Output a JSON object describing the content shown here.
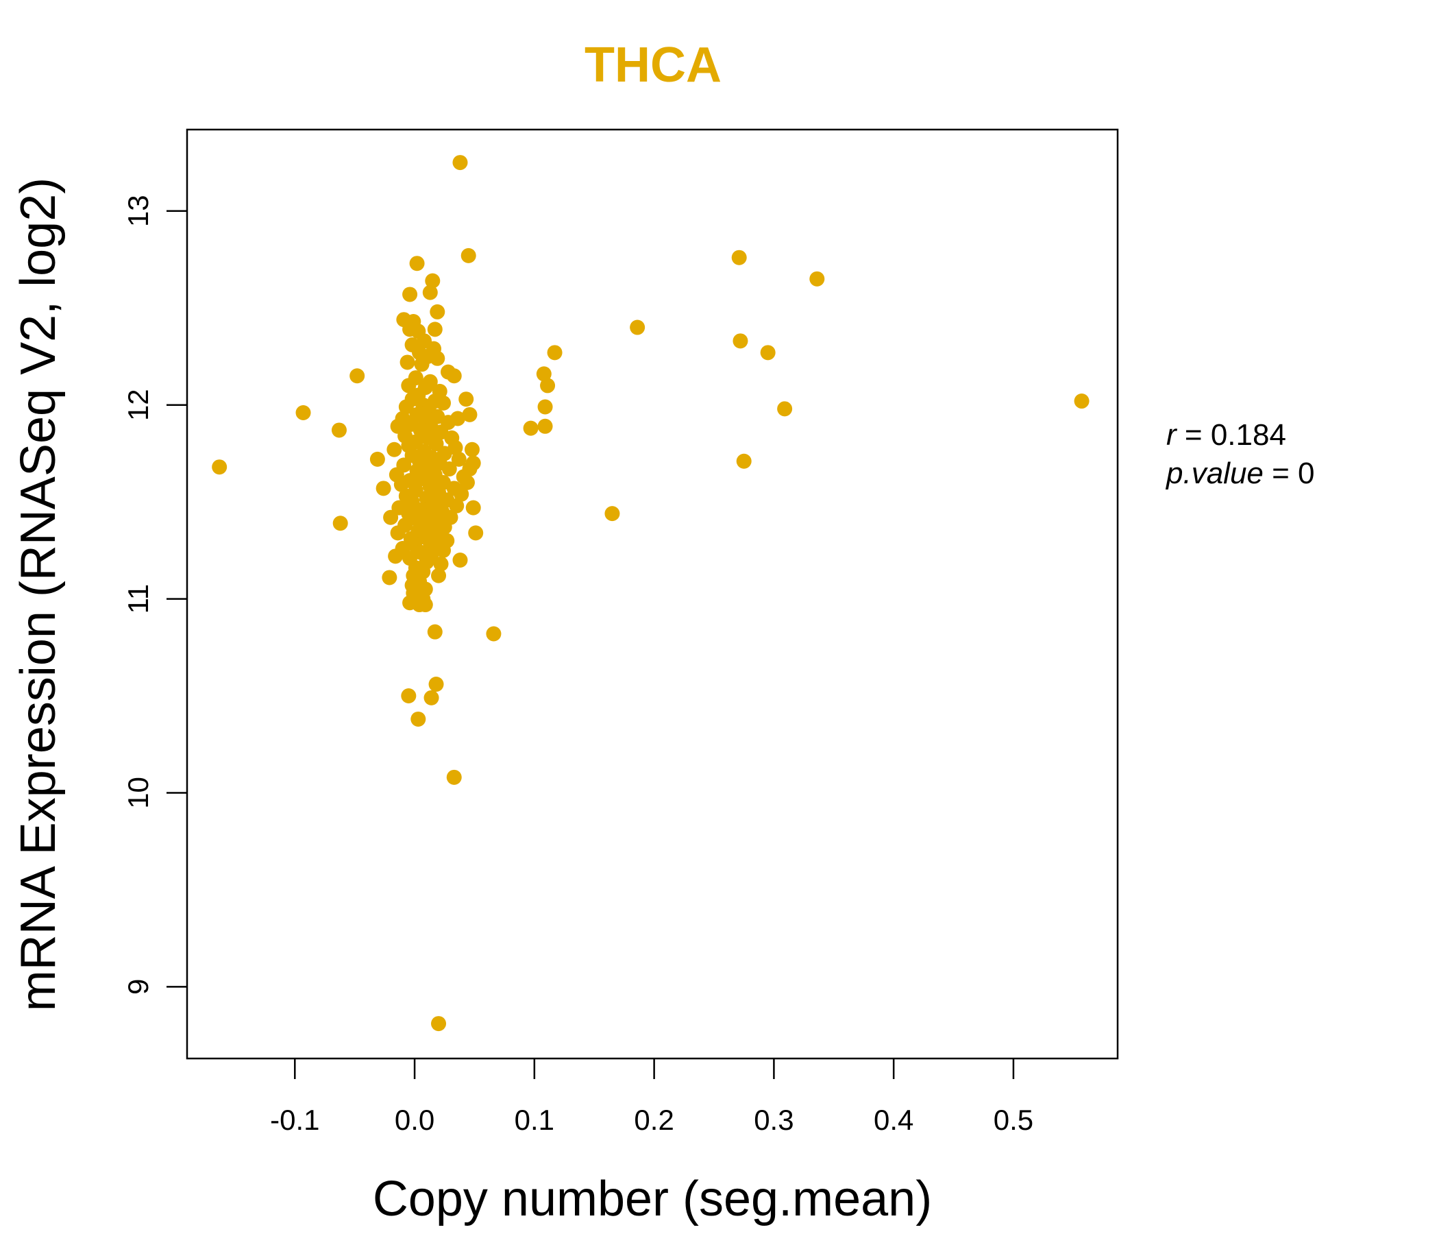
{
  "colors": {
    "point": "#E3AA00",
    "title": "#E3AA00",
    "axis": "#000000"
  },
  "chart_data": {
    "type": "scatter",
    "title": "THCA",
    "xlabel": "Copy number (seg.mean)",
    "ylabel": "mRNA Expression (RNASeq V2, log2)",
    "xlim": [
      -0.19,
      0.587
    ],
    "ylim": [
      8.63,
      13.42
    ],
    "x_ticks": [
      -0.1,
      0.0,
      0.1,
      0.2,
      0.3,
      0.4,
      0.5
    ],
    "x_tick_labels": [
      "-0.1",
      "0.0",
      "0.1",
      "0.2",
      "0.3",
      "0.4",
      "0.5"
    ],
    "y_ticks": [
      9,
      10,
      11,
      12,
      13
    ],
    "y_tick_labels": [
      "9",
      "10",
      "11",
      "12",
      "13"
    ],
    "annotation": {
      "r_label": "r",
      "r_value": "0.184",
      "p_label": "p.value",
      "p_value": "0"
    },
    "points": [
      {
        "x": 0.038,
        "y": 13.25
      },
      {
        "x": 0.045,
        "y": 12.77
      },
      {
        "x": 0.002,
        "y": 12.73
      },
      {
        "x": 0.015,
        "y": 12.64
      },
      {
        "x": 0.013,
        "y": 12.58
      },
      {
        "x": -0.004,
        "y": 12.57
      },
      {
        "x": 0.019,
        "y": 12.48
      },
      {
        "x": -0.009,
        "y": 12.44
      },
      {
        "x": -0.001,
        "y": 12.43
      },
      {
        "x": 0.017,
        "y": 12.39
      },
      {
        "x": 0.003,
        "y": 12.38
      },
      {
        "x": -0.004,
        "y": 12.39
      },
      {
        "x": 0.008,
        "y": 12.33
      },
      {
        "x": -0.002,
        "y": 12.31
      },
      {
        "x": 0.016,
        "y": 12.29
      },
      {
        "x": 0.004,
        "y": 12.27
      },
      {
        "x": 0.011,
        "y": 12.25
      },
      {
        "x": 0.019,
        "y": 12.24
      },
      {
        "x": -0.006,
        "y": 12.22
      },
      {
        "x": 0.006,
        "y": 12.21
      },
      {
        "x": 0.028,
        "y": 12.17
      },
      {
        "x": -0.048,
        "y": 12.15
      },
      {
        "x": 0.033,
        "y": 12.15
      },
      {
        "x": 0.001,
        "y": 12.14
      },
      {
        "x": 0.013,
        "y": 12.12
      },
      {
        "x": -0.005,
        "y": 12.1
      },
      {
        "x": 0.009,
        "y": 12.09
      },
      {
        "x": 0.021,
        "y": 12.07
      },
      {
        "x": 0.003,
        "y": 12.05
      },
      {
        "x": -0.002,
        "y": 12.03
      },
      {
        "x": 0.043,
        "y": 12.03
      },
      {
        "x": 0.017,
        "y": 12.02
      },
      {
        "x": 0.007,
        "y": 12.0
      },
      {
        "x": 0.024,
        "y": 12.01
      },
      {
        "x": -0.007,
        "y": 11.99
      },
      {
        "x": 0.012,
        "y": 11.97
      },
      {
        "x": -0.093,
        "y": 11.96
      },
      {
        "x": 0.046,
        "y": 11.95
      },
      {
        "x": 0.002,
        "y": 11.95
      },
      {
        "x": 0.019,
        "y": 11.94
      },
      {
        "x": -0.01,
        "y": 11.93
      },
      {
        "x": 0.036,
        "y": 11.93
      },
      {
        "x": 0.009,
        "y": 11.92
      },
      {
        "x": 0.028,
        "y": 11.91
      },
      {
        "x": -0.003,
        "y": 11.9
      },
      {
        "x": -0.014,
        "y": 11.89
      },
      {
        "x": 0.014,
        "y": 11.88
      },
      {
        "x": 0.005,
        "y": 11.87
      },
      {
        "x": -0.063,
        "y": 11.87
      },
      {
        "x": 0.022,
        "y": 11.86
      },
      {
        "x": -0.008,
        "y": 11.84
      },
      {
        "x": 0.011,
        "y": 11.83
      },
      {
        "x": 0.031,
        "y": 11.83
      },
      {
        "x": 0.001,
        "y": 11.81
      },
      {
        "x": 0.018,
        "y": 11.8
      },
      {
        "x": -0.005,
        "y": 11.79
      },
      {
        "x": 0.034,
        "y": 11.78
      },
      {
        "x": -0.017,
        "y": 11.77
      },
      {
        "x": 0.048,
        "y": 11.77
      },
      {
        "x": 0.008,
        "y": 11.76
      },
      {
        "x": 0.025,
        "y": 11.75
      },
      {
        "x": -0.002,
        "y": 11.74
      },
      {
        "x": 0.014,
        "y": 11.73
      },
      {
        "x": 0.037,
        "y": 11.72
      },
      {
        "x": -0.031,
        "y": 11.72
      },
      {
        "x": 0.004,
        "y": 11.71
      },
      {
        "x": 0.021,
        "y": 11.7
      },
      {
        "x": 0.049,
        "y": 11.7
      },
      {
        "x": -0.009,
        "y": 11.69
      },
      {
        "x": 0.011,
        "y": 11.68
      },
      {
        "x": 0.029,
        "y": 11.67
      },
      {
        "x": -0.163,
        "y": 11.68
      },
      {
        "x": 0.046,
        "y": 11.67
      },
      {
        "x": 0.002,
        "y": 11.66
      },
      {
        "x": -0.015,
        "y": 11.64
      },
      {
        "x": 0.017,
        "y": 11.64
      },
      {
        "x": 0.041,
        "y": 11.63
      },
      {
        "x": 0.007,
        "y": 11.62
      },
      {
        "x": -0.004,
        "y": 11.61
      },
      {
        "x": 0.024,
        "y": 11.6
      },
      {
        "x": 0.044,
        "y": 11.6
      },
      {
        "x": -0.011,
        "y": 11.59
      },
      {
        "x": 0.013,
        "y": 11.58
      },
      {
        "x": 0.033,
        "y": 11.57
      },
      {
        "x": -0.026,
        "y": 11.57
      },
      {
        "x": 0.001,
        "y": 11.56
      },
      {
        "x": 0.02,
        "y": 11.55
      },
      {
        "x": 0.039,
        "y": 11.54
      },
      {
        "x": -0.007,
        "y": 11.53
      },
      {
        "x": 0.01,
        "y": 11.52
      },
      {
        "x": 0.027,
        "y": 11.51
      },
      {
        "x": -0.002,
        "y": 11.5
      },
      {
        "x": 0.016,
        "y": 11.49
      },
      {
        "x": 0.035,
        "y": 11.48
      },
      {
        "x": 0.049,
        "y": 11.47
      },
      {
        "x": -0.013,
        "y": 11.47
      },
      {
        "x": 0.006,
        "y": 11.46
      },
      {
        "x": 0.023,
        "y": 11.45
      },
      {
        "x": -0.005,
        "y": 11.44
      },
      {
        "x": 0.012,
        "y": 11.43
      },
      {
        "x": 0.03,
        "y": 11.42
      },
      {
        "x": -0.02,
        "y": 11.42
      },
      {
        "x": 0.002,
        "y": 11.41
      },
      {
        "x": 0.019,
        "y": 11.4
      },
      {
        "x": 0.009,
        "y": 11.39
      },
      {
        "x": -0.062,
        "y": 11.39
      },
      {
        "x": -0.008,
        "y": 11.38
      },
      {
        "x": 0.025,
        "y": 11.37
      },
      {
        "x": 0.015,
        "y": 11.36
      },
      {
        "x": 0.003,
        "y": 11.35
      },
      {
        "x": 0.051,
        "y": 11.34
      },
      {
        "x": -0.014,
        "y": 11.34
      },
      {
        "x": 0.021,
        "y": 11.33
      },
      {
        "x": 0.007,
        "y": 11.32
      },
      {
        "x": -0.003,
        "y": 11.31
      },
      {
        "x": 0.027,
        "y": 11.3
      },
      {
        "x": 0.013,
        "y": 11.29
      },
      {
        "x": 0.0,
        "y": 11.28
      },
      {
        "x": 0.018,
        "y": 11.27
      },
      {
        "x": -0.01,
        "y": 11.26
      },
      {
        "x": 0.024,
        "y": 11.25
      },
      {
        "x": 0.005,
        "y": 11.24
      },
      {
        "x": 0.014,
        "y": 11.23
      },
      {
        "x": -0.016,
        "y": 11.22
      },
      {
        "x": 0.038,
        "y": 11.2
      },
      {
        "x": -0.004,
        "y": 11.21
      },
      {
        "x": 0.01,
        "y": 11.19
      },
      {
        "x": 0.022,
        "y": 11.18
      },
      {
        "x": 0.001,
        "y": 11.16
      },
      {
        "x": 0.007,
        "y": 11.14
      },
      {
        "x": -0.001,
        "y": 11.12
      },
      {
        "x": 0.02,
        "y": 11.12
      },
      {
        "x": -0.021,
        "y": 11.11
      },
      {
        "x": 0.004,
        "y": 11.09
      },
      {
        "x": -0.002,
        "y": 11.07
      },
      {
        "x": 0.009,
        "y": 11.05
      },
      {
        "x": -0.001,
        "y": 11.03
      },
      {
        "x": 0.007,
        "y": 11.0
      },
      {
        "x": 0.003,
        "y": 10.98
      },
      {
        "x": -0.004,
        "y": 10.98
      },
      {
        "x": 0.009,
        "y": 10.97
      },
      {
        "x": 0.004,
        "y": 10.97
      },
      {
        "x": 0.017,
        "y": 10.83
      },
      {
        "x": 0.066,
        "y": 10.82
      },
      {
        "x": 0.018,
        "y": 10.56
      },
      {
        "x": -0.005,
        "y": 10.5
      },
      {
        "x": 0.014,
        "y": 10.49
      },
      {
        "x": 0.003,
        "y": 10.38
      },
      {
        "x": 0.033,
        "y": 10.08
      },
      {
        "x": 0.02,
        "y": 8.81
      },
      {
        "x": 0.108,
        "y": 12.16
      },
      {
        "x": 0.111,
        "y": 12.1
      },
      {
        "x": 0.117,
        "y": 12.27
      },
      {
        "x": 0.109,
        "y": 11.99
      },
      {
        "x": 0.097,
        "y": 11.88
      },
      {
        "x": 0.109,
        "y": 11.89
      },
      {
        "x": 0.165,
        "y": 11.44
      },
      {
        "x": 0.186,
        "y": 12.4
      },
      {
        "x": 0.271,
        "y": 12.76
      },
      {
        "x": 0.272,
        "y": 12.33
      },
      {
        "x": 0.275,
        "y": 11.71
      },
      {
        "x": 0.295,
        "y": 12.27
      },
      {
        "x": 0.309,
        "y": 11.98
      },
      {
        "x": 0.336,
        "y": 12.65
      },
      {
        "x": 0.557,
        "y": 12.02
      }
    ]
  }
}
